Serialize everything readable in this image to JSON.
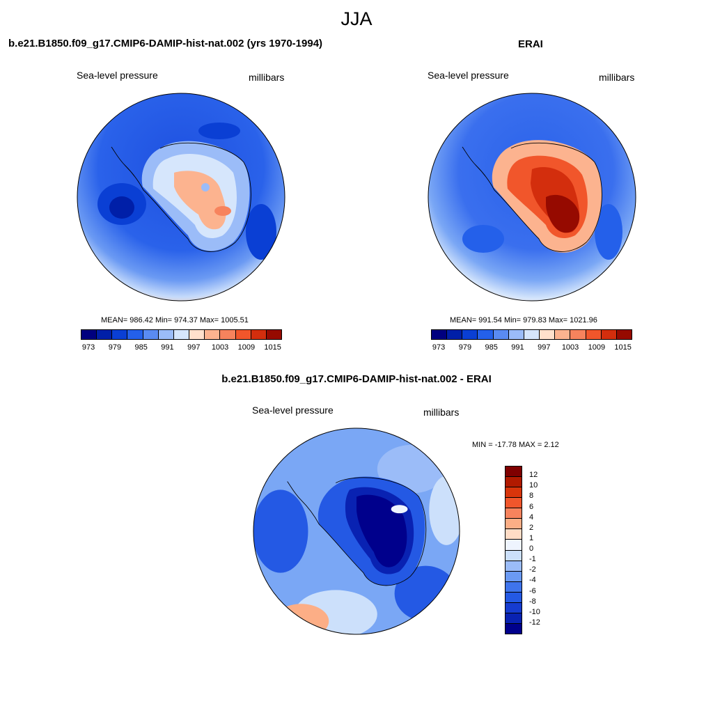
{
  "title": "JJA",
  "colors": {
    "levels_13": [
      "#00007f",
      "#001fa8",
      "#0a3fd4",
      "#2460ea",
      "#5a8bf2",
      "#9bbcf8",
      "#d6e6fc",
      "#ffe1cc",
      "#fcb38f",
      "#f7835d",
      "#f1562b",
      "#d32e0d",
      "#960a00"
    ],
    "diff_16": [
      "#7f0000",
      "#b11a00",
      "#d8350b",
      "#f1562b",
      "#f7835d",
      "#fcae86",
      "#ffdcc6",
      "#eef4fe",
      "#cce0fb",
      "#9bbcf8",
      "#6b9af3",
      "#3f74ec",
      "#2459e4",
      "#163cd0",
      "#0922b2",
      "#00008c"
    ]
  },
  "panels": {
    "model": {
      "title": "b.e21.B1850.f09_g17.CMIP6-DAMIP-hist-nat.002 (yrs 1970-1994)",
      "left_label": "Sea-level pressure",
      "right_label": "millibars",
      "stats": "MEAN= 986.42  Min= 974.37  Max= 1005.51",
      "ticks": [
        "973",
        "979",
        "985",
        "991",
        "997",
        "1003",
        "1009",
        "1015"
      ]
    },
    "obs": {
      "title": "ERAI",
      "left_label": "Sea-level pressure",
      "right_label": "millibars",
      "stats": "MEAN= 991.54  Min= 979.83  Max= 1021.96",
      "ticks": [
        "973",
        "979",
        "985",
        "991",
        "997",
        "1003",
        "1009",
        "1015"
      ]
    },
    "diff": {
      "title": "b.e21.B1850.f09_g17.CMIP6-DAMIP-hist-nat.002 - ERAI",
      "left_label": "Sea-level pressure",
      "right_label": "millibars",
      "stats": "MIN = -17.78 MAX =   2.12",
      "ticks": [
        "12",
        "10",
        "8",
        "6",
        "4",
        "2",
        "1",
        "0",
        "-1",
        "-2",
        "-4",
        "-6",
        "-8",
        "-10",
        "-12"
      ]
    }
  }
}
